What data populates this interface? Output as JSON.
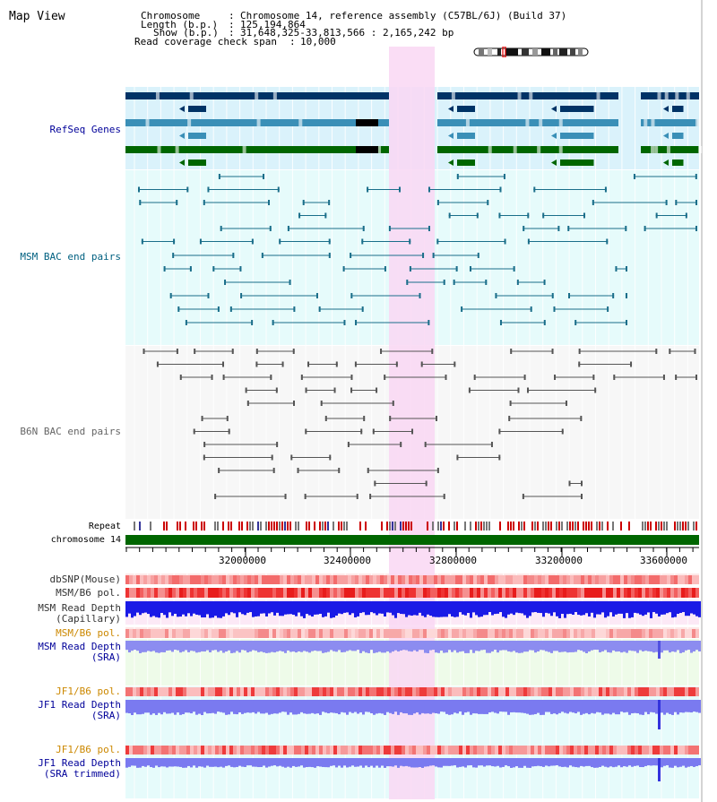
{
  "view_title": "Map View",
  "info": {
    "chromosome_label": "Chromosome",
    "chromosome_value": "Chromosome 14, reference assembly (C57BL/6J) (Build 37)",
    "length_label": "Length (b.p.)",
    "length_value": "125,194,864",
    "show_label": "Show (b.p.)",
    "show_value": "31,648,325-33,813,566 : 2,165,242 bp",
    "coverage_label": "Read coverage check span",
    "coverage_value": "10,000"
  },
  "tracks": {
    "refseq": "RefSeq Genes",
    "msm_bac": "MSM BAC end pairs",
    "b6n_bac": "B6N BAC end pairs",
    "repeat": "Repeat",
    "chromosome": "chromosome 14",
    "dbsnp": "dbSNP(Mouse)",
    "msm_b6_pol_1": "MSM/B6 pol.",
    "msm_depth_cap_1": "MSM Read Depth",
    "msm_depth_cap_2": "(Capillary)",
    "msm_b6_pol_2": "MSM/B6 pol.",
    "msm_depth_sra_1": "MSM Read Depth",
    "msm_depth_sra_2": "(SRA)",
    "jf1_b6_pol_1": "JF1/B6 pol.",
    "jf1_depth_sra_1": "JF1 Read Depth",
    "jf1_depth_sra_2": "(SRA)",
    "jf1_b6_pol_2": "JF1/B6 pol.",
    "jf1_depth_trim_1": "JF1 Read Depth",
    "jf1_depth_trim_2": "(SRA trimmed)"
  },
  "axis": {
    "ticks": [
      "32000000",
      "32400000",
      "32800000",
      "33200000",
      "33600000"
    ]
  },
  "colors": {
    "refseq_dark": "#003366",
    "refseq_mid": "#3a8fb7",
    "refseq_green": "#006600",
    "msm_pair": "#1a6e8a",
    "b6n_pair": "#555555",
    "highlight": "#f9d7f3",
    "chrom": "#006600",
    "msm_label": "#006080",
    "b6n_label": "#666666",
    "blue_label": "#000099",
    "orange_label": "#cc8800",
    "grey_label": "#333333"
  }
}
